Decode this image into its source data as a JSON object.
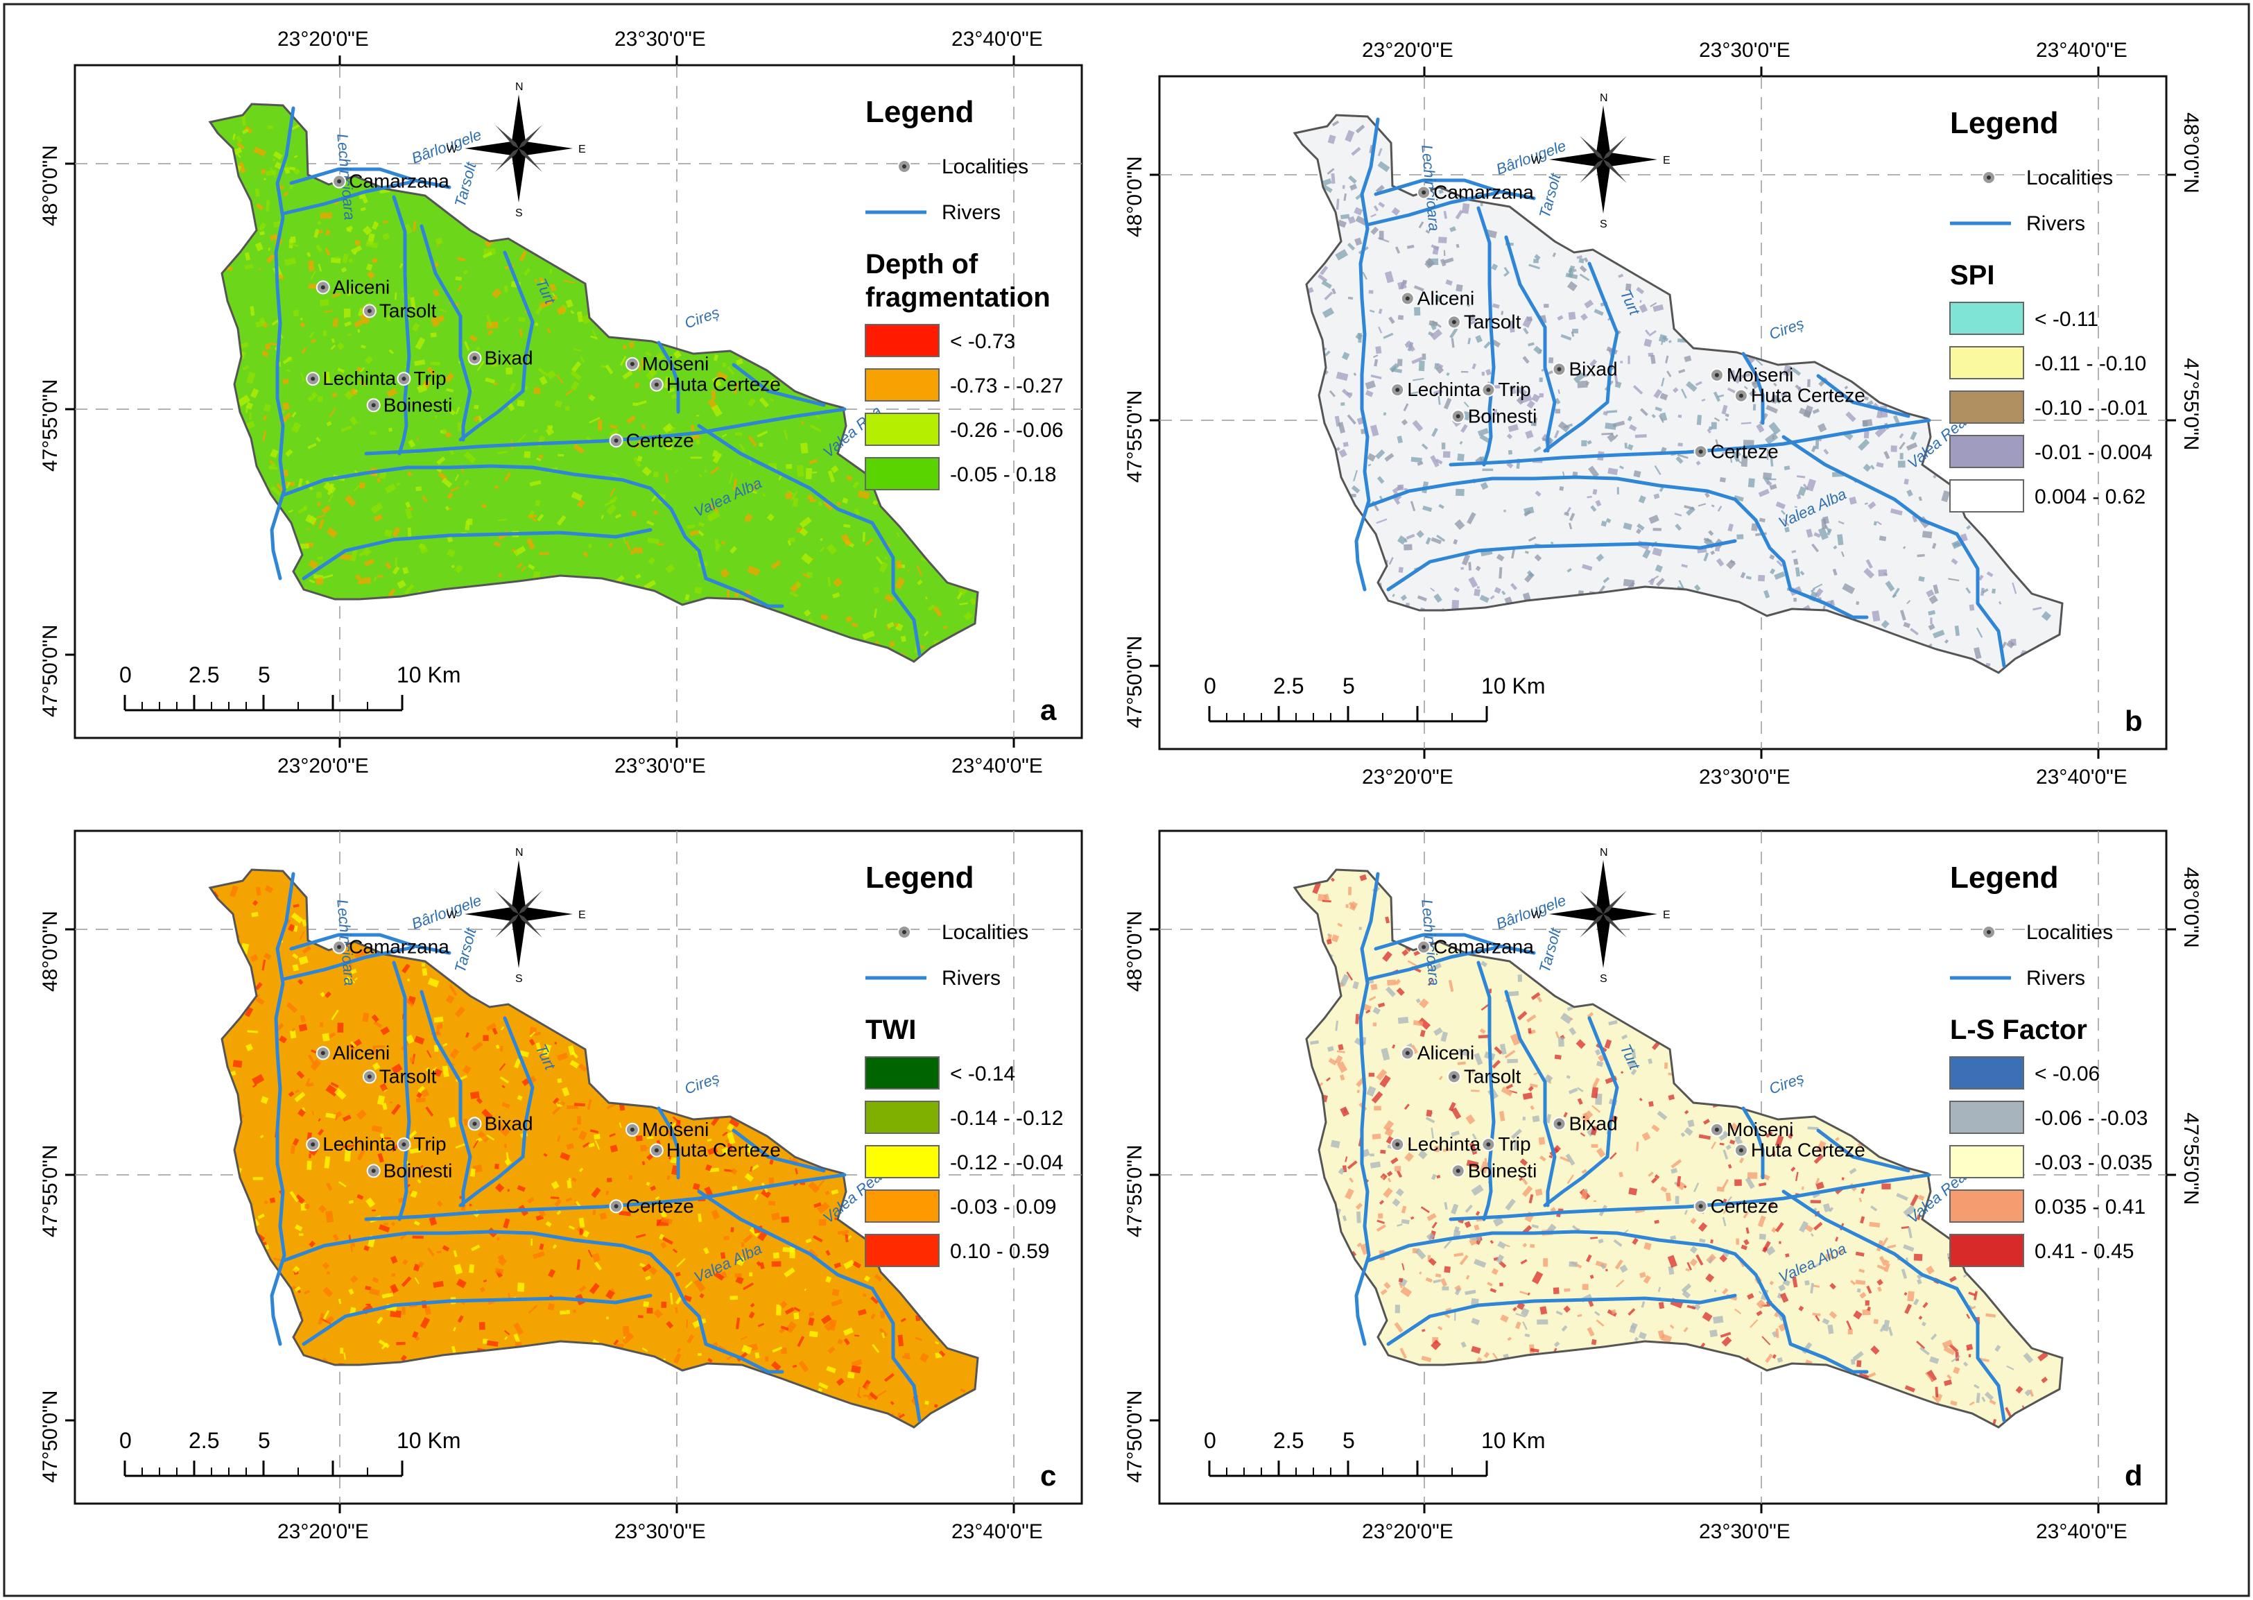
{
  "panels": [
    {
      "id": "a",
      "panel_label": "a",
      "legend_title": "Legend",
      "theme_title": [
        "Depth of",
        "fragmentation"
      ],
      "symbols": {
        "localities": "Localities",
        "rivers": "Rivers"
      },
      "classes": [
        {
          "label": "< -0.73",
          "color": "#ff1a00"
        },
        {
          "label": "-0.73 - -0.27",
          "color": "#f7a200"
        },
        {
          "label": "-0.26 - -0.06",
          "color": "#b5ee00"
        },
        {
          "label": "-0.05 - 0.18",
          "color": "#5ad400"
        }
      ],
      "base_color": "#6cd61a",
      "speckle_colors": [
        "#b5ee00",
        "#f7a200",
        "#8fe000"
      ],
      "top_ticks": [
        "23°20'0\"E",
        "23°30'0\"E",
        "23°40'0\"E"
      ],
      "bottom_ticks": [
        "23°20'0\"E",
        "23°30'0\"E",
        "23°40'0\"E"
      ],
      "left_ticks": [
        "48°0'0\"N",
        "47°55'0\"N",
        "47°50'0\"N"
      ],
      "right_ticks": []
    },
    {
      "id": "b",
      "panel_label": "b",
      "legend_title": "Legend",
      "theme_title": [
        "SPI"
      ],
      "symbols": {
        "localities": "Localities",
        "rivers": "Rivers"
      },
      "classes": [
        {
          "label": "< -0.11",
          "color": "#7fe3d6"
        },
        {
          "label": "-0.11 - -0.10",
          "color": "#fbf9a0"
        },
        {
          "label": "-0.10 - -0.01",
          "color": "#b09060"
        },
        {
          "label": "-0.01 - 0.004",
          "color": "#a09cc0"
        },
        {
          "label": "0.004 - 0.62",
          "color": "#ffffff"
        }
      ],
      "base_color": "#f2f3f5",
      "speckle_colors": [
        "#8d96a6",
        "#a09cc0",
        "#7fa3b0"
      ],
      "top_ticks": [
        "23°20'0\"E",
        "23°30'0\"E",
        "23°40'0\"E"
      ],
      "bottom_ticks": [
        "23°20'0\"E",
        "23°30'0\"E",
        "23°40'0\"E"
      ],
      "left_ticks": [
        "48°0'0\"N",
        "47°55'0\"N",
        "47°50'0\"N"
      ],
      "right_ticks": [
        "48°0'0\"N",
        "47°55'0\"N"
      ]
    },
    {
      "id": "c",
      "panel_label": "c",
      "legend_title": "Legend",
      "theme_title": [
        "TWI"
      ],
      "symbols": {
        "localities": "Localities",
        "rivers": "Rivers"
      },
      "classes": [
        {
          "label": "< -0.14",
          "color": "#006400"
        },
        {
          "label": "-0.14 - -0.12",
          "color": "#7fb000"
        },
        {
          "label": "-0.12 - -0.04",
          "color": "#ffff00"
        },
        {
          "label": "-0.03 - 0.09",
          "color": "#ff9900"
        },
        {
          "label": "0.10 - 0.59",
          "color": "#ff2a00"
        }
      ],
      "base_color": "#f4a400",
      "speckle_colors": [
        "#ff2a00",
        "#ffff00",
        "#ff7a00"
      ],
      "top_ticks": [],
      "bottom_ticks": [
        "23°20'0\"E",
        "23°30'0\"E",
        "23°40'0\"E"
      ],
      "left_ticks": [
        "48°0'0\"N",
        "47°55'0\"N",
        "47°50'0\"N"
      ],
      "right_ticks": []
    },
    {
      "id": "d",
      "panel_label": "d",
      "legend_title": "Legend",
      "theme_title": [
        "L-S Factor"
      ],
      "symbols": {
        "localities": "Localities",
        "rivers": "Rivers"
      },
      "classes": [
        {
          "label": "< -0.06",
          "color": "#3b6fb6"
        },
        {
          "label": "-0.06 - -0.03",
          "color": "#a8b4bd"
        },
        {
          "label": "-0.03 - 0.035",
          "color": "#ffffc8"
        },
        {
          "label": "0.035 - 0.41",
          "color": "#f59c70"
        },
        {
          "label": "0.41 - 0.45",
          "color": "#d92a2a"
        }
      ],
      "base_color": "#fbf7cc",
      "speckle_colors": [
        "#a8b4bd",
        "#d92a2a",
        "#f59c70"
      ],
      "top_ticks": [],
      "bottom_ticks": [
        "23°20'0\"E",
        "23°30'0\"E",
        "23°40'0\"E"
      ],
      "left_ticks": [
        "48°0'0\"N",
        "47°55'0\"N",
        "47°50'0\"N"
      ],
      "right_ticks": [
        "48°0'0\"N",
        "47°55'0\"N"
      ]
    }
  ],
  "localities": [
    {
      "name": "Camarzana",
      "lon": 23.333,
      "lat": 47.994
    },
    {
      "name": "Aliceni",
      "lon": 23.325,
      "lat": 47.958
    },
    {
      "name": "Tarsolt",
      "lon": 23.348,
      "lat": 47.95
    },
    {
      "name": "Bixad",
      "lon": 23.4,
      "lat": 47.934
    },
    {
      "name": "Moiseni",
      "lon": 23.478,
      "lat": 47.932
    },
    {
      "name": "Huta Certeze",
      "lon": 23.49,
      "lat": 47.925
    },
    {
      "name": "Lechinta",
      "lon": 23.32,
      "lat": 47.927
    },
    {
      "name": "Trip",
      "lon": 23.365,
      "lat": 47.927
    },
    {
      "name": "Boinesti",
      "lon": 23.35,
      "lat": 47.918
    },
    {
      "name": "Certeze",
      "lon": 23.47,
      "lat": 47.906
    }
  ],
  "rivers": [
    {
      "name": "Lechincioara",
      "label_pos": [
        23.332,
        48.01
      ],
      "label_rot": 85
    },
    {
      "name": "Bârlougele",
      "label_pos": [
        23.37,
        48.0
      ],
      "label_rot": -20
    },
    {
      "name": "Tarsolt",
      "label_pos": [
        23.395,
        47.985
      ],
      "label_rot": -75
    },
    {
      "name": "Turt",
      "label_pos": [
        23.43,
        47.96
      ],
      "label_rot": 65
    },
    {
      "name": "Cireș",
      "label_pos": [
        23.505,
        47.944
      ],
      "label_rot": -20
    },
    {
      "name": "Valea Rea",
      "label_pos": [
        23.575,
        47.9
      ],
      "label_rot": -40
    },
    {
      "name": "Valea Alba",
      "label_pos": [
        23.51,
        47.88
      ],
      "label_rot": -25
    }
  ],
  "compass": {
    "n": "N",
    "s": "S",
    "e": "E",
    "w": "W"
  },
  "scale_bar": {
    "ticks": [
      "0",
      "2.5",
      "5",
      "10 Km"
    ]
  }
}
